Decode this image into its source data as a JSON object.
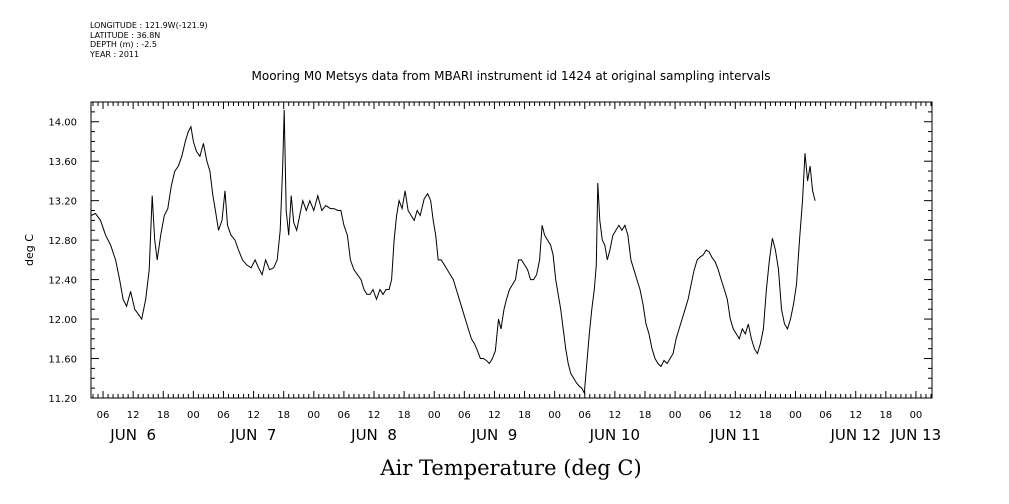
{
  "metadata": {
    "longitude": "LONGITUDE : 121.9W(-121.9)",
    "latitude": "LATITUDE : 36.8N",
    "depth": "DEPTH (m) : -2.5",
    "year": "YEAR : 2011"
  },
  "chart_data": {
    "type": "line",
    "title": "Mooring M0 Metsys data from MBARI instrument id 1424 at original sampling intervals",
    "xlabel": "Air Temperature (deg C)",
    "ylabel": "deg C",
    "ylim": [
      11.2,
      14.2
    ],
    "yticks": [
      "11.20",
      "11.60",
      "12.00",
      "12.40",
      "12.80",
      "13.20",
      "13.60",
      "14.00"
    ],
    "xlim_hours": [
      3.6,
      171.2
    ],
    "hour_ticks": [
      {
        "h": 6,
        "label": "06"
      },
      {
        "h": 12,
        "label": "12"
      },
      {
        "h": 18,
        "label": "18"
      },
      {
        "h": 24,
        "label": "00"
      },
      {
        "h": 30,
        "label": "06"
      },
      {
        "h": 36,
        "label": "12"
      },
      {
        "h": 42,
        "label": "18"
      },
      {
        "h": 48,
        "label": "00"
      },
      {
        "h": 54,
        "label": "06"
      },
      {
        "h": 60,
        "label": "12"
      },
      {
        "h": 66,
        "label": "18"
      },
      {
        "h": 72,
        "label": "00"
      },
      {
        "h": 78,
        "label": "06"
      },
      {
        "h": 84,
        "label": "12"
      },
      {
        "h": 90,
        "label": "18"
      },
      {
        "h": 96,
        "label": "00"
      },
      {
        "h": 102,
        "label": "06"
      },
      {
        "h": 108,
        "label": "12"
      },
      {
        "h": 114,
        "label": "18"
      },
      {
        "h": 120,
        "label": "00"
      },
      {
        "h": 126,
        "label": "06"
      },
      {
        "h": 132,
        "label": "12"
      },
      {
        "h": 138,
        "label": "18"
      },
      {
        "h": 144,
        "label": "00"
      },
      {
        "h": 150,
        "label": "06"
      },
      {
        "h": 156,
        "label": "12"
      },
      {
        "h": 162,
        "label": "18"
      },
      {
        "h": 168,
        "label": "00"
      }
    ],
    "day_labels": [
      {
        "h": 12,
        "label": "JUN  6"
      },
      {
        "h": 36,
        "label": "JUN  7"
      },
      {
        "h": 60,
        "label": "JUN  8"
      },
      {
        "h": 84,
        "label": "JUN  9"
      },
      {
        "h": 108,
        "label": "JUN 10"
      },
      {
        "h": 132,
        "label": "JUN 11"
      },
      {
        "h": 156,
        "label": "JUN 12"
      },
      {
        "h": 168,
        "label": "JUN 13"
      }
    ],
    "series": [
      {
        "color": "#000000",
        "points": [
          [
            3.6,
            13.05
          ],
          [
            4.5,
            13.07
          ],
          [
            5.5,
            13.0
          ],
          [
            6.5,
            12.85
          ],
          [
            7.5,
            12.75
          ],
          [
            8.5,
            12.6
          ],
          [
            9.3,
            12.4
          ],
          [
            10.0,
            12.2
          ],
          [
            10.7,
            12.13
          ],
          [
            11.5,
            12.28
          ],
          [
            12.3,
            12.1
          ],
          [
            13.0,
            12.05
          ],
          [
            13.7,
            12.0
          ],
          [
            14.5,
            12.2
          ],
          [
            15.2,
            12.5
          ],
          [
            15.8,
            13.25
          ],
          [
            16.3,
            12.8
          ],
          [
            16.8,
            12.6
          ],
          [
            17.5,
            12.85
          ],
          [
            18.2,
            13.05
          ],
          [
            18.9,
            13.12
          ],
          [
            19.6,
            13.35
          ],
          [
            20.3,
            13.5
          ],
          [
            21.0,
            13.55
          ],
          [
            21.7,
            13.65
          ],
          [
            22.4,
            13.8
          ],
          [
            23.0,
            13.9
          ],
          [
            23.5,
            13.95
          ],
          [
            24.0,
            13.8
          ],
          [
            24.6,
            13.7
          ],
          [
            25.3,
            13.65
          ],
          [
            26.0,
            13.78
          ],
          [
            26.7,
            13.6
          ],
          [
            27.3,
            13.5
          ],
          [
            27.9,
            13.25
          ],
          [
            28.4,
            13.1
          ],
          [
            29.0,
            12.9
          ],
          [
            29.7,
            13.0
          ],
          [
            30.3,
            13.3
          ],
          [
            30.8,
            12.95
          ],
          [
            31.5,
            12.85
          ],
          [
            32.3,
            12.8
          ],
          [
            33.0,
            12.7
          ],
          [
            33.8,
            12.6
          ],
          [
            34.6,
            12.55
          ],
          [
            35.5,
            12.52
          ],
          [
            36.3,
            12.6
          ],
          [
            37.0,
            12.52
          ],
          [
            37.7,
            12.45
          ],
          [
            38.4,
            12.6
          ],
          [
            39.2,
            12.5
          ],
          [
            40.0,
            12.52
          ],
          [
            40.7,
            12.6
          ],
          [
            41.3,
            12.9
          ],
          [
            41.8,
            13.55
          ],
          [
            42.1,
            14.12
          ],
          [
            42.5,
            13.1
          ],
          [
            43.0,
            12.85
          ],
          [
            43.5,
            13.25
          ],
          [
            44.0,
            12.98
          ],
          [
            44.6,
            12.9
          ],
          [
            45.2,
            13.05
          ],
          [
            45.8,
            13.2
          ],
          [
            46.5,
            13.1
          ],
          [
            47.2,
            13.2
          ],
          [
            48.0,
            13.1
          ],
          [
            48.8,
            13.25
          ],
          [
            49.6,
            13.1
          ],
          [
            50.4,
            13.15
          ],
          [
            51.3,
            13.12
          ],
          [
            52.0,
            13.12
          ],
          [
            52.8,
            13.1
          ],
          [
            53.4,
            13.1
          ],
          [
            54.0,
            12.95
          ],
          [
            54.7,
            12.85
          ],
          [
            55.3,
            12.6
          ],
          [
            56.0,
            12.5
          ],
          [
            56.7,
            12.45
          ],
          [
            57.4,
            12.4
          ],
          [
            58.0,
            12.3
          ],
          [
            58.6,
            12.25
          ],
          [
            59.2,
            12.25
          ],
          [
            59.8,
            12.3
          ],
          [
            60.5,
            12.2
          ],
          [
            61.2,
            12.3
          ],
          [
            61.8,
            12.25
          ],
          [
            62.4,
            12.3
          ],
          [
            63.0,
            12.3
          ],
          [
            63.5,
            12.4
          ],
          [
            64.0,
            12.8
          ],
          [
            64.5,
            13.05
          ],
          [
            65.0,
            13.2
          ],
          [
            65.6,
            13.12
          ],
          [
            66.2,
            13.3
          ],
          [
            66.8,
            13.1
          ],
          [
            67.4,
            13.05
          ],
          [
            68.0,
            13.0
          ],
          [
            68.6,
            13.1
          ],
          [
            69.2,
            13.05
          ],
          [
            70.0,
            13.22
          ],
          [
            70.7,
            13.27
          ],
          [
            71.3,
            13.2
          ],
          [
            71.8,
            13.0
          ],
          [
            72.3,
            12.85
          ],
          [
            72.8,
            12.6
          ],
          [
            73.4,
            12.6
          ],
          [
            74.0,
            12.55
          ],
          [
            74.6,
            12.5
          ],
          [
            75.2,
            12.45
          ],
          [
            75.8,
            12.4
          ],
          [
            76.4,
            12.3
          ],
          [
            77.0,
            12.2
          ],
          [
            77.6,
            12.1
          ],
          [
            78.2,
            12.0
          ],
          [
            78.8,
            11.9
          ],
          [
            79.4,
            11.8
          ],
          [
            80.0,
            11.75
          ],
          [
            80.6,
            11.68
          ],
          [
            81.2,
            11.6
          ],
          [
            81.8,
            11.6
          ],
          [
            82.4,
            11.58
          ],
          [
            83.0,
            11.55
          ],
          [
            83.6,
            11.6
          ],
          [
            84.2,
            11.68
          ],
          [
            84.8,
            12.0
          ],
          [
            85.3,
            11.9
          ],
          [
            85.9,
            12.1
          ],
          [
            86.4,
            12.2
          ],
          [
            87.0,
            12.3
          ],
          [
            87.6,
            12.35
          ],
          [
            88.2,
            12.4
          ],
          [
            88.8,
            12.6
          ],
          [
            89.4,
            12.6
          ],
          [
            90.0,
            12.55
          ],
          [
            90.6,
            12.5
          ],
          [
            91.2,
            12.4
          ],
          [
            91.8,
            12.4
          ],
          [
            92.4,
            12.45
          ],
          [
            93.0,
            12.6
          ],
          [
            93.5,
            12.95
          ],
          [
            94.0,
            12.85
          ],
          [
            94.6,
            12.8
          ],
          [
            95.2,
            12.75
          ],
          [
            95.7,
            12.65
          ],
          [
            96.2,
            12.4
          ],
          [
            96.7,
            12.25
          ],
          [
            97.2,
            12.1
          ],
          [
            97.7,
            11.9
          ],
          [
            98.2,
            11.7
          ],
          [
            98.7,
            11.55
          ],
          [
            99.2,
            11.45
          ],
          [
            99.8,
            11.4
          ],
          [
            100.4,
            11.35
          ],
          [
            100.9,
            11.32
          ],
          [
            101.4,
            11.3
          ],
          [
            101.9,
            11.25
          ],
          [
            102.4,
            11.55
          ],
          [
            102.9,
            11.85
          ],
          [
            103.4,
            12.1
          ],
          [
            103.9,
            12.3
          ],
          [
            104.3,
            12.55
          ],
          [
            104.6,
            13.38
          ],
          [
            105.0,
            13.0
          ],
          [
            105.5,
            12.8
          ],
          [
            106.0,
            12.75
          ],
          [
            106.5,
            12.6
          ],
          [
            107.0,
            12.7
          ],
          [
            107.6,
            12.85
          ],
          [
            108.2,
            12.9
          ],
          [
            108.8,
            12.95
          ],
          [
            109.4,
            12.9
          ],
          [
            110.0,
            12.95
          ],
          [
            110.6,
            12.85
          ],
          [
            111.2,
            12.6
          ],
          [
            111.8,
            12.5
          ],
          [
            112.4,
            12.4
          ],
          [
            113.0,
            12.3
          ],
          [
            113.6,
            12.15
          ],
          [
            114.2,
            11.95
          ],
          [
            114.8,
            11.85
          ],
          [
            115.4,
            11.7
          ],
          [
            116.0,
            11.6
          ],
          [
            116.6,
            11.55
          ],
          [
            117.2,
            11.52
          ],
          [
            117.8,
            11.58
          ],
          [
            118.4,
            11.55
          ],
          [
            119.0,
            11.6
          ],
          [
            119.6,
            11.65
          ],
          [
            120.2,
            11.8
          ],
          [
            120.8,
            11.9
          ],
          [
            121.4,
            12.0
          ],
          [
            122.0,
            12.1
          ],
          [
            122.6,
            12.2
          ],
          [
            123.2,
            12.35
          ],
          [
            123.8,
            12.5
          ],
          [
            124.4,
            12.6
          ],
          [
            125.0,
            12.63
          ],
          [
            125.6,
            12.65
          ],
          [
            126.2,
            12.7
          ],
          [
            126.8,
            12.68
          ],
          [
            127.4,
            12.62
          ],
          [
            128.0,
            12.58
          ],
          [
            128.6,
            12.5
          ],
          [
            129.2,
            12.4
          ],
          [
            129.8,
            12.3
          ],
          [
            130.4,
            12.2
          ],
          [
            131.0,
            12.0
          ],
          [
            131.6,
            11.9
          ],
          [
            132.2,
            11.85
          ],
          [
            132.8,
            11.8
          ],
          [
            133.4,
            11.9
          ],
          [
            134.0,
            11.85
          ],
          [
            134.6,
            11.95
          ],
          [
            135.2,
            11.8
          ],
          [
            135.8,
            11.7
          ],
          [
            136.4,
            11.65
          ],
          [
            137.0,
            11.75
          ],
          [
            137.6,
            11.9
          ],
          [
            138.2,
            12.3
          ],
          [
            138.8,
            12.6
          ],
          [
            139.4,
            12.82
          ],
          [
            140.0,
            12.7
          ],
          [
            140.6,
            12.5
          ],
          [
            141.2,
            12.1
          ],
          [
            141.8,
            11.95
          ],
          [
            142.4,
            11.9
          ],
          [
            143.0,
            12.0
          ],
          [
            143.6,
            12.15
          ],
          [
            144.2,
            12.35
          ],
          [
            144.8,
            12.8
          ],
          [
            145.4,
            13.2
          ],
          [
            145.9,
            13.68
          ],
          [
            146.4,
            13.4
          ],
          [
            146.9,
            13.55
          ],
          [
            147.4,
            13.3
          ],
          [
            147.9,
            13.2
          ]
        ]
      }
    ]
  }
}
